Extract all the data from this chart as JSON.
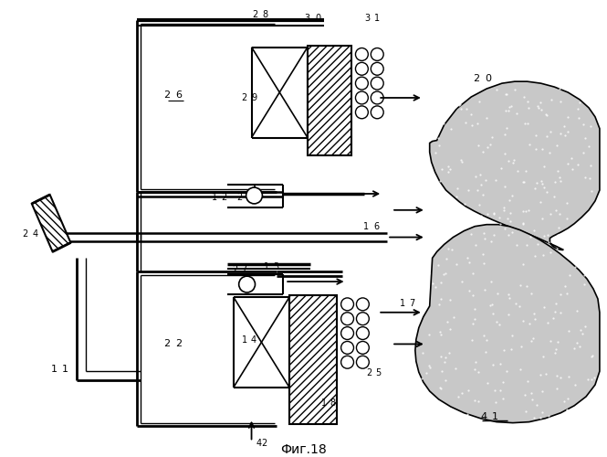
{
  "title": "Фиг.18",
  "background": "#ffffff",
  "fig_width": 6.65,
  "fig_height": 5.0,
  "dpi": 100
}
